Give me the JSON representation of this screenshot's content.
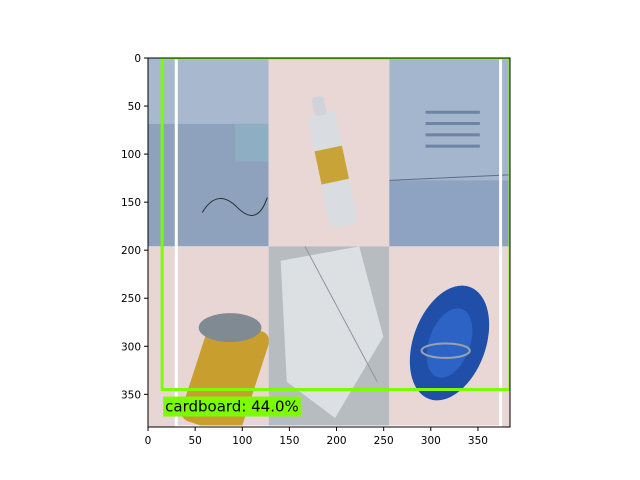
{
  "chart_data": {
    "type": "image_detection",
    "image_size": [
      384,
      384
    ],
    "xlim": [
      0,
      384
    ],
    "ylim": [
      384,
      0
    ],
    "xticks": [
      0,
      50,
      100,
      150,
      200,
      250,
      300,
      350
    ],
    "yticks": [
      0,
      50,
      100,
      150,
      200,
      250,
      300,
      350
    ],
    "mosaic": {
      "rows": 2,
      "cols": 3,
      "row_heights": [
        196,
        188
      ],
      "col_widths": [
        128,
        128,
        128
      ],
      "tiles": [
        {
          "row": 0,
          "col": 0,
          "content": "plastic-bag-on-blue-background",
          "bg": "#8ea2be",
          "accent": "#b9c7da"
        },
        {
          "row": 0,
          "col": 1,
          "content": "water-bottle-yellow-label",
          "bg": "#e8d7d4",
          "accent": "#c8a337"
        },
        {
          "row": 0,
          "col": 2,
          "content": "cardboard-box-blue",
          "bg": "#a3b6cd",
          "accent": "#6d84a6"
        },
        {
          "row": 1,
          "col": 0,
          "content": "yellow-can",
          "bg": "#e8d6d4",
          "accent": "#c89f2e"
        },
        {
          "row": 1,
          "col": 1,
          "content": "clear-plastic-sheet",
          "bg": "#b7bcc1",
          "accent": "#e3e6e8"
        },
        {
          "row": 1,
          "col": 2,
          "content": "blue-plastic-lid",
          "bg": "#e9d7d6",
          "accent": "#2c63c4"
        }
      ]
    },
    "boxes": [
      {
        "x1": 30,
        "y1": 0,
        "x2": 374,
        "y2": 384,
        "color": "#ffffff",
        "label": ""
      },
      {
        "x1": 15,
        "y1": 0,
        "x2": 384,
        "y2": 345,
        "color": "#7cfc00",
        "label": "cardboard: 44.0%"
      }
    ]
  }
}
